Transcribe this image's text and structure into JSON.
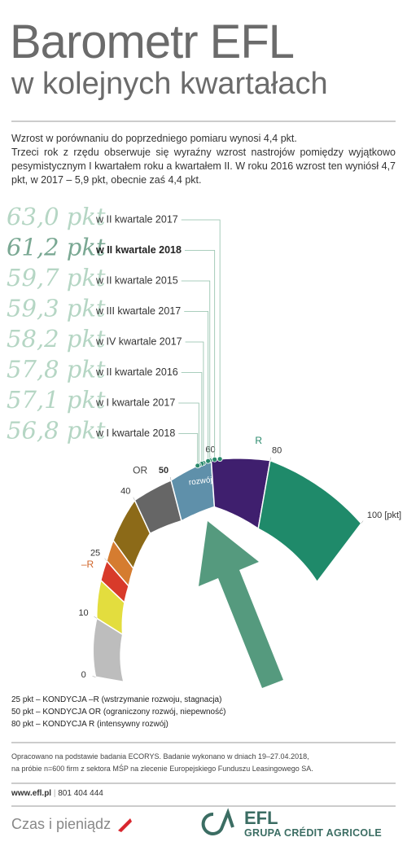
{
  "header": {
    "title": "Barometr EFL",
    "subtitle": "w kolejnych kwartałach"
  },
  "intro": [
    "Wzrost w porównaniu do poprzedniego pomiaru wynosi 4,4 pkt.",
    "Trzeci rok z rzędu obserwuje się wyraźny wzrost nastrojów pomiędzy wyjątkowo pesymistycznym I kwartałem roku a kwartałem II. W roku 2016 wzrost ten wyniósł 4,7 pkt, w 2017 – 5,9 pkt, obecnie zaś 4,4 pkt."
  ],
  "readings": [
    {
      "value": 63.0,
      "label": "63,0 pkt",
      "period": "w II kwartale 2017"
    },
    {
      "value": 61.2,
      "label": "61,2 pkt",
      "period": "w II kwartale 2018",
      "highlight": true
    },
    {
      "value": 59.7,
      "label": "59,7 pkt",
      "period": "w II kwartale 2015"
    },
    {
      "value": 59.3,
      "label": "59,3 pkt",
      "period": "w III kwartale 2017"
    },
    {
      "value": 58.2,
      "label": "58,2 pkt",
      "period": "w IV kwartale 2017"
    },
    {
      "value": 57.8,
      "label": "57,8 pkt",
      "period": "w II kwartale 2016"
    },
    {
      "value": 57.1,
      "label": "57,1 pkt",
      "period": "w I kwartale 2017"
    },
    {
      "value": 56.8,
      "label": "56,8 pkt",
      "period": "w I kwartale 2018"
    }
  ],
  "gauge": {
    "ticks": [
      0,
      10,
      25,
      40,
      50,
      60,
      80,
      {
        "value": 100,
        "label": "100 [pkt]"
      }
    ],
    "zones": [
      {
        "value": 25,
        "label": "–R",
        "color": "#d0652a"
      },
      {
        "value": 50,
        "label": "OR",
        "color": "#444444"
      },
      {
        "value": 80,
        "label": "R",
        "color": "#2a8a6c"
      }
    ],
    "segments": [
      {
        "from": 0,
        "to": 10,
        "color": "#bdbdbd"
      },
      {
        "from": 10,
        "to": 20,
        "color": "#e3dd3e"
      },
      {
        "from": 20,
        "to": 25,
        "color": "#d83a2a"
      },
      {
        "from": 25,
        "to": 30,
        "color": "#d57c30"
      },
      {
        "from": 30,
        "to": 40,
        "color": "#8c6a18"
      },
      {
        "from": 40,
        "to": 50,
        "color": "#666666"
      },
      {
        "from": 50,
        "to": 60,
        "color": "#5f90aa",
        "label": "rozwój"
      },
      {
        "from": 60,
        "to": 80,
        "color": "#3f1f6e"
      },
      {
        "from": 80,
        "to": 100,
        "color": "#1f8a6a"
      }
    ]
  },
  "legend": [
    "25 pkt – KONDYCJA –R (wstrzymanie rozwoju, stagnacja)",
    "50 pkt – KONDYCJA OR (ograniczony rozwój, niepewność)",
    "80 pkt – KONDYCJA R (intensywny rozwój)"
  ],
  "note": [
    "Opracowano na podstawie badania ECORYS. Badanie wykonano w dniach 19–27.04.2018,",
    "na próbie n=600 firm z sektora MŚP na zlecenie Europejskiego Funduszu Leasingowego SA."
  ],
  "contact": {
    "site": "www.efl.pl",
    "phone": "801 404 444"
  },
  "footer": {
    "slogan": "Czas i pieniądz",
    "brand": "EFL",
    "group": "GRUPA CRÉDIT AGRICOLE"
  }
}
